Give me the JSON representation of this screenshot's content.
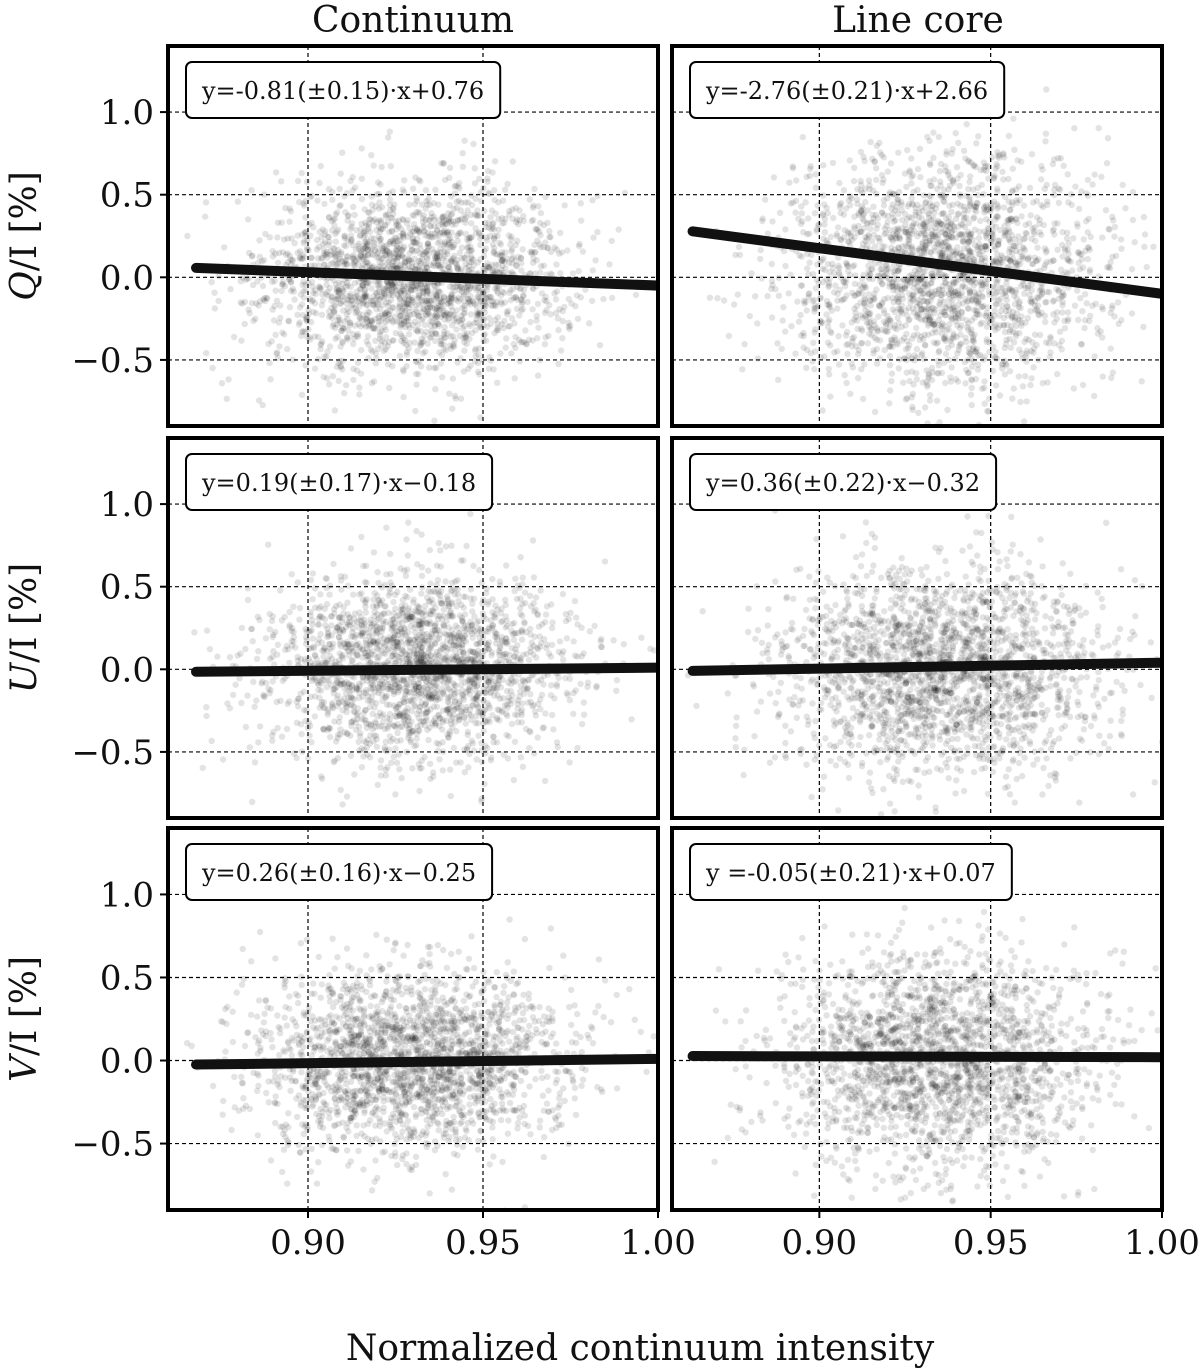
{
  "figure": {
    "column_titles": [
      "Continuum",
      "Line core"
    ],
    "xlabel": "Normalized continuum intensity"
  },
  "chart_data": [
    {
      "type": "scatter",
      "row": 0,
      "col": 0,
      "ylabel_var": "Q",
      "ylabel_rest": "/I [%]",
      "equation": "y=-0.81(±0.15)·x+0.76",
      "xlim": [
        0.86,
        1.0
      ],
      "ylim": [
        -0.9,
        1.4
      ],
      "xticks": [
        0.9,
        0.95,
        1.0
      ],
      "xtick_labels": [
        "0.90",
        "0.95",
        "1.00"
      ],
      "yticks": [
        1.0,
        0.5,
        0.0,
        -0.5
      ],
      "ytick_labels": [
        "1.0",
        "0.5",
        "0.0",
        "−0.5"
      ],
      "grid": true,
      "scatter": {
        "x_center": 0.93,
        "x_sd": 0.022,
        "x_range": [
          0.865,
          1.0
        ],
        "y_center": 0.0,
        "y_sd": 0.27,
        "n": 2200
      },
      "fit": {
        "slope": -0.81,
        "intercept": 0.76,
        "x_range": [
          0.868,
          1.0
        ]
      }
    },
    {
      "type": "scatter",
      "row": 0,
      "col": 1,
      "ylabel_var": "Q",
      "ylabel_rest": "/I [%]",
      "equation": "y=-2.76(±0.21)·x+2.66",
      "xlim": [
        0.857,
        1.0
      ],
      "ylim": [
        -0.9,
        1.4
      ],
      "xticks": [
        0.9,
        0.95,
        1.0
      ],
      "xtick_labels": [
        "0.90",
        "0.95",
        "1.00"
      ],
      "yticks": [
        1.0,
        0.5,
        0.0,
        -0.5
      ],
      "ytick_labels": [
        "1.0",
        "0.5",
        "0.0",
        "−0.5"
      ],
      "grid": true,
      "scatter": {
        "x_center": 0.935,
        "x_sd": 0.023,
        "x_range": [
          0.86,
          1.0
        ],
        "y_center": 0.05,
        "y_sd": 0.35,
        "n": 2200
      },
      "fit": {
        "slope": -2.76,
        "intercept": 2.66,
        "x_range": [
          0.863,
          1.0
        ]
      }
    },
    {
      "type": "scatter",
      "row": 1,
      "col": 0,
      "ylabel_var": "U",
      "ylabel_rest": "/I [%]",
      "equation": "y=0.19(±0.17)·x−0.18",
      "xlim": [
        0.86,
        1.0
      ],
      "ylim": [
        -0.9,
        1.4
      ],
      "xticks": [
        0.9,
        0.95,
        1.0
      ],
      "xtick_labels": [
        "0.90",
        "0.95",
        "1.00"
      ],
      "yticks": [
        1.0,
        0.5,
        0.0,
        -0.5
      ],
      "ytick_labels": [
        "1.0",
        "0.5",
        "0.0",
        "−0.5"
      ],
      "grid": true,
      "scatter": {
        "x_center": 0.932,
        "x_sd": 0.022,
        "x_range": [
          0.865,
          1.0
        ],
        "y_center": 0.0,
        "y_sd": 0.28,
        "n": 2200
      },
      "fit": {
        "slope": 0.19,
        "intercept": -0.18,
        "x_range": [
          0.868,
          1.0
        ]
      }
    },
    {
      "type": "scatter",
      "row": 1,
      "col": 1,
      "ylabel_var": "U",
      "ylabel_rest": "/I [%]",
      "equation": "y=0.36(±0.22)·x−0.32",
      "xlim": [
        0.857,
        1.0
      ],
      "ylim": [
        -0.9,
        1.4
      ],
      "xticks": [
        0.9,
        0.95,
        1.0
      ],
      "xtick_labels": [
        "0.90",
        "0.95",
        "1.00"
      ],
      "yticks": [
        1.0,
        0.5,
        0.0,
        -0.5
      ],
      "ytick_labels": [
        "1.0",
        "0.5",
        "0.0",
        "−0.5"
      ],
      "grid": true,
      "scatter": {
        "x_center": 0.935,
        "x_sd": 0.023,
        "x_range": [
          0.86,
          1.0
        ],
        "y_center": 0.0,
        "y_sd": 0.32,
        "n": 2200
      },
      "fit": {
        "slope": 0.36,
        "intercept": -0.32,
        "x_range": [
          0.863,
          1.0
        ]
      }
    },
    {
      "type": "scatter",
      "row": 2,
      "col": 0,
      "ylabel_var": "V",
      "ylabel_rest": "/I [%]",
      "equation": "y=0.26(±0.16)·x−0.25",
      "xlim": [
        0.86,
        1.0
      ],
      "ylim": [
        -0.9,
        1.4
      ],
      "xticks": [
        0.9,
        0.95,
        1.0
      ],
      "xtick_labels": [
        "0.90",
        "0.95",
        "1.00"
      ],
      "yticks": [
        1.0,
        0.5,
        0.0,
        -0.5
      ],
      "ytick_labels": [
        "1.0",
        "0.5",
        "0.0",
        "−0.5"
      ],
      "grid": true,
      "scatter": {
        "x_center": 0.93,
        "x_sd": 0.022,
        "x_range": [
          0.865,
          1.0
        ],
        "y_center": 0.0,
        "y_sd": 0.27,
        "n": 2200
      },
      "fit": {
        "slope": 0.26,
        "intercept": -0.25,
        "x_range": [
          0.868,
          1.0
        ]
      }
    },
    {
      "type": "scatter",
      "row": 2,
      "col": 1,
      "ylabel_var": "V",
      "ylabel_rest": "/I [%]",
      "equation": "y =-0.05(±0.21)·x+0.07",
      "xlim": [
        0.857,
        1.0
      ],
      "ylim": [
        -0.9,
        1.4
      ],
      "xticks": [
        0.9,
        0.95,
        1.0
      ],
      "xtick_labels": [
        "0.90",
        "0.95",
        "1.00"
      ],
      "yticks": [
        1.0,
        0.5,
        0.0,
        -0.5
      ],
      "ytick_labels": [
        "1.0",
        "0.5",
        "0.0",
        "−0.5"
      ],
      "grid": true,
      "scatter": {
        "x_center": 0.935,
        "x_sd": 0.023,
        "x_range": [
          0.86,
          1.0
        ],
        "y_center": 0.0,
        "y_sd": 0.32,
        "n": 2200
      },
      "fit": {
        "slope": -0.05,
        "intercept": 0.07,
        "x_range": [
          0.863,
          1.0
        ]
      }
    }
  ]
}
